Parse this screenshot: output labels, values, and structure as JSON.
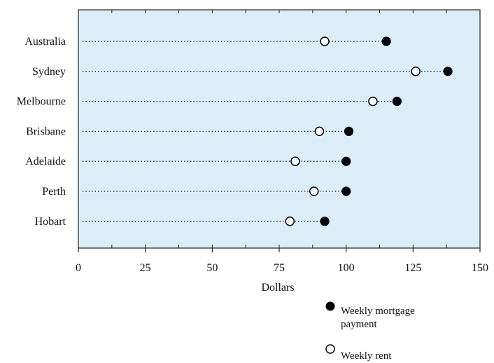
{
  "chart_data": {
    "type": "scatter",
    "orientation": "horizontal-dot-plot",
    "title": "",
    "xlabel": "Dollars",
    "ylabel": "",
    "xlim": [
      0,
      150
    ],
    "xticks": [
      0,
      25,
      50,
      75,
      100,
      125,
      150
    ],
    "xtick_labels": [
      "0",
      "25",
      "50",
      "75",
      "100",
      "125",
      "150"
    ],
    "categories": [
      "Australia",
      "Sydney",
      "Melbourne",
      "Brisbane",
      "Adelaide",
      "Perth",
      "Hobart"
    ],
    "series": [
      {
        "name": "Weekly mortgage payment",
        "marker": "filled-circle",
        "values": [
          115,
          138,
          119,
          101,
          100,
          100,
          92
        ]
      },
      {
        "name": "Weekly rent",
        "marker": "open-circle",
        "values": [
          92,
          126,
          110,
          90,
          81,
          88,
          79
        ]
      }
    ],
    "legend": {
      "placement": "bottom-right",
      "entries": [
        {
          "line1": "Weekly mortgage",
          "line2": "payment",
          "marker": "filled-circle"
        },
        {
          "line1": "Weekly rent",
          "line2": "",
          "marker": "open-circle"
        }
      ]
    },
    "grid": false,
    "colors": {
      "plot_background": "#dbeef8",
      "marker": "#000000",
      "frame": "#222222"
    }
  }
}
